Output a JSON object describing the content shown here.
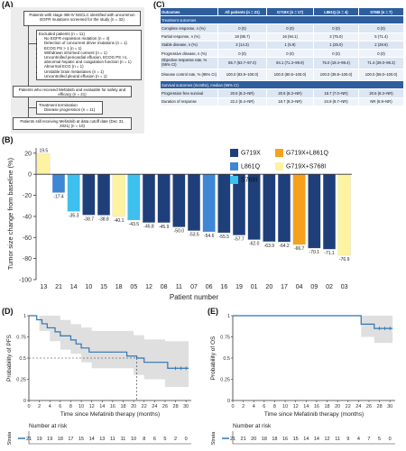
{
  "panel_labels": {
    "a": "(A)",
    "b": "(B)",
    "c": "(C)",
    "d": "(D)",
    "e": "(E)"
  },
  "flow": {
    "box1": "Patients with stage IIIB-IV NSCLC identified with uncommon EGFR mutations screened for the study (n = 32)",
    "excluded_title": "Excluded patients (n = 11)",
    "excluded_items": [
      "No EGFR expansion mutation (n = 4)",
      "Detection of concurrent driver mutations (n = 1)",
      "ECOG PS > 1 (n = 1)",
      "Withdrawn informed consent (n = 1)",
      "Uncontrolled pericardial effusion, ECOG PS >1, abnormal hepatic and coagulation function (n = 1)",
      "Abnormal ECG (n = 1)",
      "Unstable brain metastases (n = 1)",
      "Uncontrolled pleural effusion (n = 1)"
    ],
    "box3": "Patients who received Mefatinib and evaluable for safety and efficacy (n = 21)",
    "termination_title": "Treatment termination",
    "termination_item": "Disease progression (n = 11)",
    "box5": "Patients still receiving Mefatinib at data cutoff date (Dec 31, 2021) (n = 10)"
  },
  "table": {
    "header": [
      "Outcomes",
      "All patients (n = 21)",
      "G719X (n = 17)",
      "L861Q (n = 4)",
      "S768I (n = 7)"
    ],
    "section1": "Treatment outcomes",
    "rows1": [
      [
        "Complete response, n (%)",
        "0 (0)",
        "0 (0)",
        "0 (0)",
        "0 (0)"
      ],
      [
        "Partial response, n (%)",
        "18 (85.7)",
        "16 (94.1)",
        "3 (75.0)",
        "5 (71.4)"
      ],
      [
        "Stable disease, n (%)",
        "3 (14.3)",
        "1 (5.9)",
        "1 (25.0)",
        "2 (28.6)"
      ],
      [
        "Progressive disease, n (%)",
        "0 (0)",
        "0 (0)",
        "0 (0)",
        "0 (0)"
      ],
      [
        "Objective response rate, % (95% CI)",
        "85.7 (63.7–97.0)",
        "94.1 (71.3–99.9)",
        "75.0 (19.4–99.4)",
        "71.4 (29.0–96.3)"
      ],
      [
        "Disease control rate, % (95% CI)",
        "100.0 (83.9–100.0)",
        "100.0 (80.5–100.0)",
        "100.0 (39.8–100.0)",
        "100.0 (59.0–100.0)"
      ]
    ],
    "section2": "Survival outcomes (months), median (95% CI)",
    "rows2": [
      [
        "Progression-free survival",
        "20.6 (8.3–NR)",
        "20.6 (8.3–NR)",
        "18.7 (7.0–NR)",
        "20.6 (8.3–NR)"
      ],
      [
        "Duration of response",
        "22.2 (8.4–NR)",
        "18.7 (8.3–NR)",
        "24.9 (9.7–NR)",
        "NR (6.9–NR)"
      ]
    ]
  },
  "colors": {
    "G719X": "#1f3f7a",
    "L861Q": "#3e86d6",
    "S768I": "#3ec0ef",
    "G719X+L861Q": "#f5a11c",
    "G719X+S768I": "#fdf3a0",
    "km_line": "#2e75b6",
    "km_band": "#d9d9d9"
  },
  "legend": [
    "G719X",
    "L861Q",
    "S768I",
    "G719X+L861Q",
    "G719X+S768I"
  ],
  "chart_data": [
    {
      "type": "bar",
      "ylabel": "Tumor size change from baseline (%)",
      "xlabel": "Patient number",
      "ylim": [
        -100,
        25
      ],
      "yticks": [
        20,
        0,
        -20,
        -40,
        -60,
        -80,
        -100
      ],
      "categories": [
        "13",
        "21",
        "14",
        "10",
        "15",
        "18",
        "05",
        "12",
        "08",
        "11",
        "07",
        "06",
        "16",
        "19",
        "01",
        "20",
        "17",
        "04",
        "09",
        "02",
        "03"
      ],
      "values": [
        19.5,
        -17.4,
        -35.3,
        -38.7,
        -38.8,
        -40.1,
        -43.5,
        -45.8,
        -45.9,
        -50.0,
        -53.5,
        -54.6,
        -55.5,
        -57.7,
        -62.0,
        -63.9,
        -64.2,
        -66.7,
        -70.1,
        -71.1,
        -76.9
      ],
      "value_labels": [
        "19.5",
        "-17.4",
        "-35.3",
        "-38.7",
        "-38.8",
        "-40.1",
        "-43.5",
        "-45.8",
        "-45.9",
        "-50.0",
        "-53.5",
        "-54.6",
        "-55.5",
        "-57.7",
        "-62.0",
        "-63.9",
        "-64.2",
        "-66.7",
        "-70.1",
        "-71.1",
        "-76.9"
      ],
      "groups": [
        "G719X+S768I",
        "L861Q",
        "S768I",
        "G719X",
        "G719X",
        "G719X+S768I",
        "S768I",
        "G719X",
        "G719X",
        "G719X",
        "G719X",
        "L861Q",
        "G719X",
        "G719X",
        "G719X",
        "G719X",
        "G719X",
        "G719X+L861Q",
        "G719X",
        "G719X",
        "G719X+S768I"
      ]
    },
    {
      "type": "line",
      "ylabel": "Probability of PFS",
      "xlabel": "Time since Mefatinib therapy (months)",
      "xlim": [
        0,
        31
      ],
      "ylim": [
        0,
        1
      ],
      "xticks": [
        0,
        2,
        4,
        6,
        8,
        10,
        12,
        14,
        16,
        18,
        20,
        22,
        24,
        26,
        28,
        30
      ],
      "yticks": [
        0,
        0.25,
        0.5,
        0.75,
        1
      ],
      "curve": [
        [
          0,
          1
        ],
        [
          1,
          1
        ],
        [
          1.5,
          0.952
        ],
        [
          2.5,
          0.905
        ],
        [
          3.5,
          0.857
        ],
        [
          5,
          0.81
        ],
        [
          6,
          0.762
        ],
        [
          8,
          0.714
        ],
        [
          9,
          0.667
        ],
        [
          10,
          0.619
        ],
        [
          11.5,
          0.571
        ],
        [
          17,
          0.571
        ],
        [
          18.7,
          0.524
        ],
        [
          20.6,
          0.5
        ],
        [
          22,
          0.45
        ],
        [
          25,
          0.45
        ],
        [
          26.5,
          0.38
        ],
        [
          30.5,
          0.38
        ]
      ],
      "band_upper": [
        [
          0,
          1
        ],
        [
          2,
          1
        ],
        [
          4,
          1
        ],
        [
          6,
          0.95
        ],
        [
          8,
          0.9
        ],
        [
          10,
          0.86
        ],
        [
          12,
          0.82
        ],
        [
          16,
          0.82
        ],
        [
          20,
          0.77
        ],
        [
          22,
          0.72
        ],
        [
          26,
          0.7
        ],
        [
          30.5,
          0.68
        ]
      ],
      "band_lower": [
        [
          0,
          1
        ],
        [
          2,
          0.82
        ],
        [
          4,
          0.7
        ],
        [
          6,
          0.6
        ],
        [
          8,
          0.55
        ],
        [
          10,
          0.45
        ],
        [
          12,
          0.38
        ],
        [
          16,
          0.38
        ],
        [
          20,
          0.3
        ],
        [
          22,
          0.25
        ],
        [
          26,
          0.16
        ],
        [
          30.5,
          0.12
        ]
      ],
      "median": 20.6,
      "risk_label": "Number at risk",
      "strata_label": "Strata",
      "risk": [
        "21",
        "19",
        "19",
        "18",
        "17",
        "15",
        "14",
        "13",
        "11",
        "11",
        "10",
        "8",
        "6",
        "5",
        "2",
        "0"
      ]
    },
    {
      "type": "line",
      "ylabel": "Probability of OS",
      "xlabel": "Time since Mefatinib therapy (months)",
      "xlim": [
        0,
        31
      ],
      "ylim": [
        0,
        1
      ],
      "xticks": [
        0,
        2,
        4,
        6,
        8,
        10,
        12,
        14,
        16,
        18,
        20,
        22,
        24,
        26,
        28,
        30
      ],
      "yticks": [
        0,
        0.25,
        0.5,
        0.75,
        1
      ],
      "curve": [
        [
          0,
          1
        ],
        [
          24,
          1
        ],
        [
          24.5,
          0.9
        ],
        [
          26.5,
          0.9
        ],
        [
          27,
          0.85
        ],
        [
          30.5,
          0.85
        ]
      ],
      "band_upper": [
        [
          0,
          1
        ],
        [
          24,
          1
        ],
        [
          26,
          1
        ],
        [
          30.5,
          1
        ]
      ],
      "band_lower": [
        [
          0,
          1
        ],
        [
          24,
          1
        ],
        [
          24.5,
          0.75
        ],
        [
          27,
          0.68
        ],
        [
          30.5,
          0.68
        ]
      ],
      "risk_label": "Number at risk",
      "strata_label": "Strata",
      "risk": [
        "21",
        "21",
        "20",
        "18",
        "18",
        "16",
        "15",
        "14",
        "14",
        "12",
        "11",
        "9",
        "4",
        "7",
        "5",
        "0"
      ]
    }
  ]
}
